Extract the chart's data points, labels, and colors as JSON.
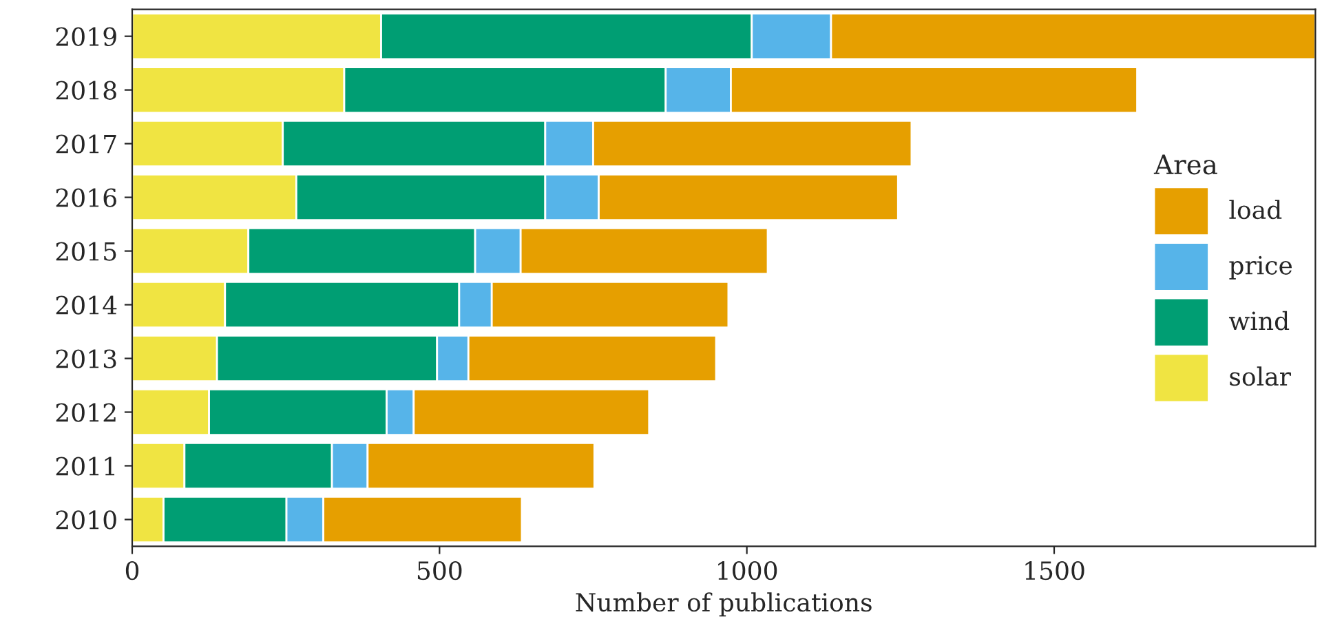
{
  "chart_data": {
    "type": "bar",
    "orientation": "horizontal",
    "stacked": true,
    "xlabel": "Number of publications",
    "legend_title": "Area",
    "legend": "right",
    "grid": false,
    "categories": [
      "2019",
      "2018",
      "2017",
      "2016",
      "2015",
      "2014",
      "2013",
      "2012",
      "2011",
      "2010"
    ],
    "xlim": [
      0,
      1925
    ],
    "xticks": [
      0,
      500,
      1000,
      1500
    ],
    "series": [
      {
        "name": "solar",
        "color": "#f0e442",
        "values": [
          405,
          345,
          245,
          267,
          189,
          151,
          138,
          125,
          85,
          51
        ]
      },
      {
        "name": "wind",
        "color": "#009e73",
        "values": [
          603,
          523,
          427,
          405,
          369,
          381,
          358,
          289,
          240,
          200
        ]
      },
      {
        "name": "price",
        "color": "#56b4e9",
        "values": [
          129,
          106,
          78,
          87,
          74,
          53,
          51,
          44,
          58,
          60
        ]
      },
      {
        "name": "load",
        "color": "#e69f00",
        "values": [
          788,
          661,
          518,
          487,
          402,
          385,
          403,
          383,
          369,
          323
        ]
      }
    ]
  }
}
